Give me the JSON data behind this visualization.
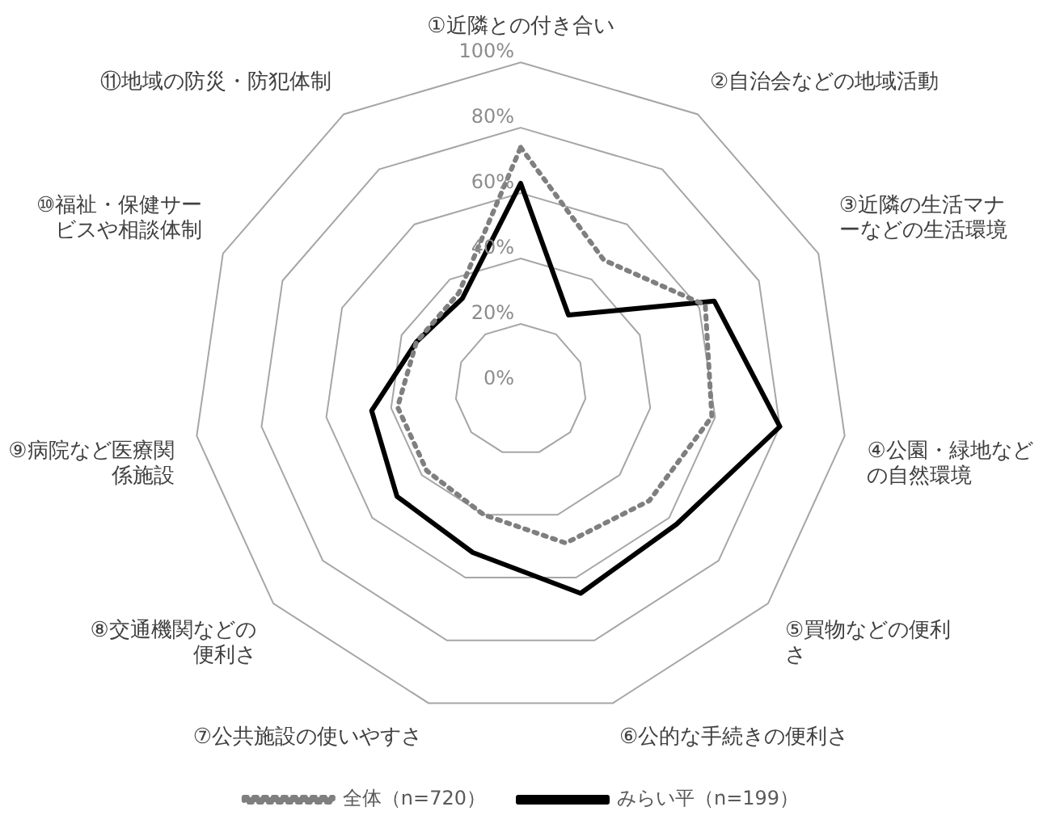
{
  "chart_data": {
    "type": "radar",
    "categories": [
      "①近隣との付き合い",
      "②自治会などの地域活動",
      "③近隣の生活マナーなどの生活環境",
      "④公園・緑地などの自然環境",
      "⑤買物などの便利さ",
      "⑥公的な手続きの便利さ",
      "⑦公共施設の使いやすさ",
      "⑧交通機関などの便利さ",
      "⑨病院など医療関係施設",
      "⑩福祉・保健サービスや相談体制",
      "⑪地域の防災・防犯体制"
    ],
    "series": [
      {
        "name": "全体（n=720）",
        "color": "#7f7f7f",
        "line_style": "dotted",
        "values": [
          74,
          47,
          62,
          59,
          52,
          49,
          40,
          38,
          38,
          35,
          35
        ]
      },
      {
        "name": "みらい平（n=199）",
        "color": "#000000",
        "line_style": "solid",
        "values": [
          63,
          27,
          65,
          80,
          63,
          65,
          52,
          50,
          46,
          35,
          33
        ]
      }
    ],
    "ylim": [
      0,
      100
    ],
    "yticks": [
      {
        "value": 0,
        "label": "0%"
      },
      {
        "value": 20,
        "label": "20%"
      },
      {
        "value": 40,
        "label": "40%"
      },
      {
        "value": 60,
        "label": "60%"
      },
      {
        "value": 80,
        "label": "80%"
      },
      {
        "value": 100,
        "label": "100%"
      }
    ],
    "grid": true,
    "legend": "bottom",
    "marker": "none"
  }
}
